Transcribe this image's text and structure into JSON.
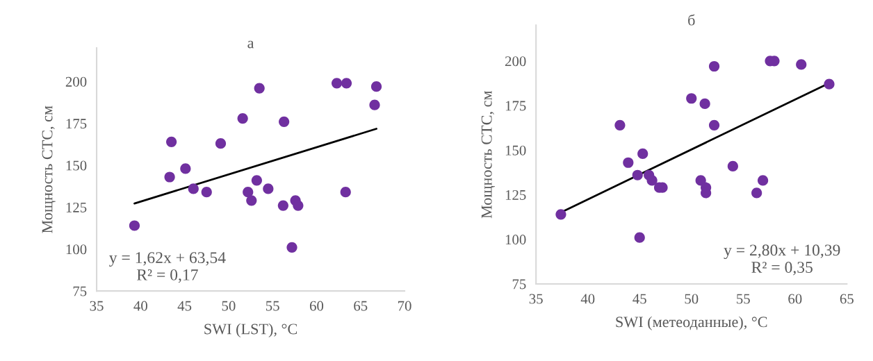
{
  "chart_data": [
    {
      "type": "scatter",
      "title": "а",
      "xlabel": "SWI (LST), °C",
      "ylabel": "Мощность СТС, см",
      "x": [
        39.3,
        43.5,
        43.3,
        45.1,
        46.0,
        47.5,
        49.1,
        51.6,
        52.2,
        52.6,
        53.2,
        53.5,
        54.5,
        56.2,
        56.3,
        57.2,
        57.6,
        57.9,
        62.3,
        63.3,
        63.4,
        66.6,
        66.8
      ],
      "series": [
        {
          "marker": "circle",
          "color": "#7030a0",
          "values": [
            114,
            164,
            143,
            148,
            136,
            134,
            163,
            178,
            134,
            129,
            141,
            196,
            136,
            126,
            176,
            101,
            129,
            126,
            199,
            134,
            199,
            186,
            197
          ]
        },
        {
          "type": "line",
          "color": "#000000",
          "x": [
            39.3,
            66.8
          ],
          "values": [
            127.2,
            171.8
          ]
        }
      ],
      "xlim": [
        35,
        70
      ],
      "xticks": [
        35,
        40,
        45,
        50,
        55,
        60,
        65,
        70
      ],
      "ylim": [
        75,
        220
      ],
      "yticks": [
        75,
        100,
        125,
        150,
        175,
        200
      ],
      "annotations": [
        "y = 1,62x + 63,54\nR² = 0,17"
      ],
      "grid": false,
      "legend": false
    },
    {
      "type": "scatter",
      "title": "б",
      "xlabel": "SWI (метеоданные), °C",
      "ylabel": "Мощность СТС, см",
      "x": [
        37.4,
        43.1,
        43.9,
        45.3,
        44.8,
        45.0,
        45.9,
        46.2,
        46.9,
        47.2,
        50.0,
        50.9,
        51.3,
        51.4,
        51.4,
        52.2,
        52.2,
        54.0,
        56.3,
        56.9,
        57.6,
        58.0,
        60.6,
        63.3
      ],
      "series": [
        {
          "marker": "circle",
          "color": "#7030a0",
          "values": [
            114,
            164,
            143,
            148,
            136,
            101,
            136,
            133,
            129,
            129,
            179,
            133,
            176,
            129,
            126,
            197,
            164,
            141,
            126,
            133,
            200,
            200,
            198,
            187
          ]
        },
        {
          "type": "line",
          "color": "#000000",
          "x": [
            37.4,
            63.3
          ],
          "values": [
            115.1,
            187.6
          ]
        }
      ],
      "xlim": [
        35,
        65
      ],
      "xticks": [
        35,
        40,
        45,
        50,
        55,
        60,
        65
      ],
      "ylim": [
        75,
        220
      ],
      "yticks": [
        75,
        100,
        125,
        150,
        175,
        200
      ],
      "annotations": [
        "y = 2,80x + 10,39\nR² = 0,35"
      ],
      "grid": false,
      "legend": false
    }
  ]
}
